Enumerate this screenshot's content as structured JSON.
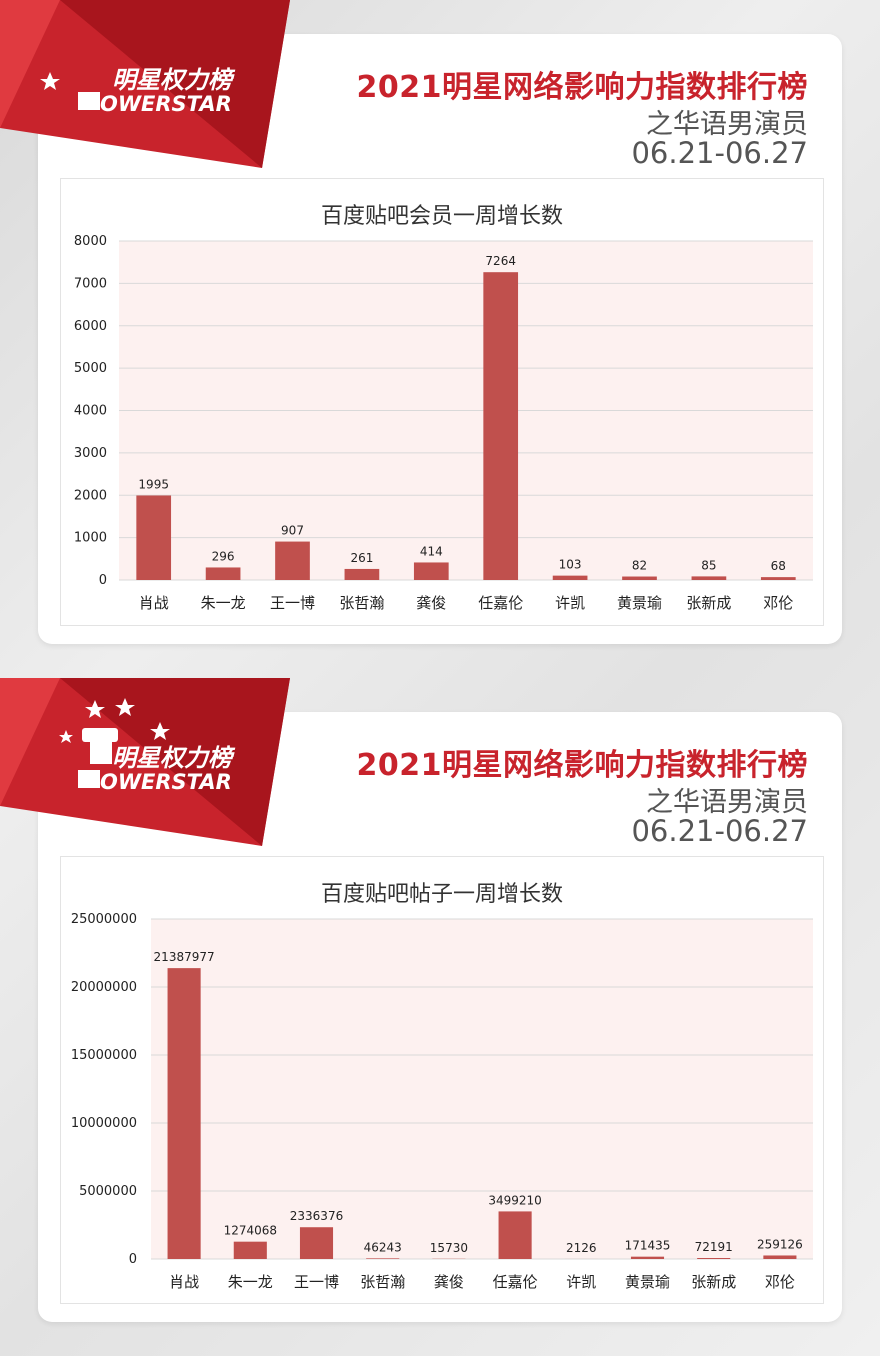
{
  "brand": {
    "name_cn": "明星权力榜",
    "name_en": "OWERSTAR",
    "primary_color": "#c8232c",
    "bar_color": "#c0504d"
  },
  "panels": [
    {
      "header": {
        "title": "2021明星网络影响力指数排行榜",
        "subtitle": "之华语男演员",
        "date_range": "06.21-06.27"
      }
    },
    {
      "header": {
        "title": "2021明星网络影响力指数排行榜",
        "subtitle": "之华语男演员",
        "date_range": "06.21-06.27"
      }
    }
  ],
  "chart_data": [
    {
      "type": "bar",
      "title": "百度贴吧会员一周增长数",
      "xlabel": "",
      "ylabel": "",
      "ylim": [
        0,
        8000
      ],
      "yticks": [
        0,
        1000,
        2000,
        3000,
        4000,
        5000,
        6000,
        7000,
        8000
      ],
      "grid": true,
      "categories": [
        "肖战",
        "朱一龙",
        "王一博",
        "张哲瀚",
        "龚俊",
        "任嘉伦",
        "许凯",
        "黄景瑜",
        "张新成",
        "邓伦"
      ],
      "values": [
        1995,
        296,
        907,
        261,
        414,
        7264,
        103,
        82,
        85,
        68
      ]
    },
    {
      "type": "bar",
      "title": "百度贴吧帖子一周增长数",
      "xlabel": "",
      "ylabel": "",
      "ylim": [
        0,
        25000000
      ],
      "yticks": [
        0,
        5000000,
        10000000,
        15000000,
        20000000,
        25000000
      ],
      "grid": true,
      "categories": [
        "肖战",
        "朱一龙",
        "王一博",
        "张哲瀚",
        "龚俊",
        "任嘉伦",
        "许凯",
        "黄景瑜",
        "张新成",
        "邓伦"
      ],
      "values": [
        21387977,
        1274068,
        2336376,
        46243,
        15730,
        3499210,
        2126,
        171435,
        72191,
        259126
      ]
    }
  ]
}
